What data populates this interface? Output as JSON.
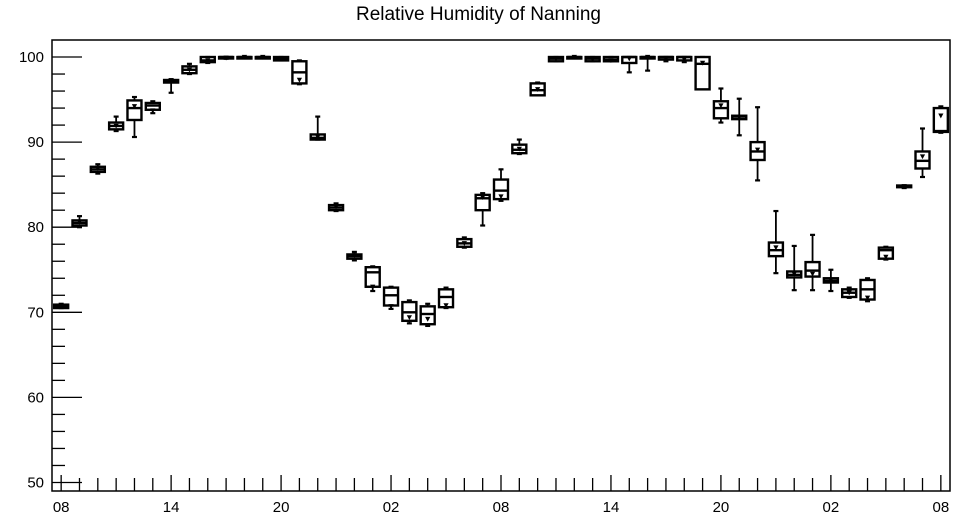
{
  "chart_data": {
    "type": "box",
    "title": "Relative Humidity of Nanning",
    "xlabel": "",
    "ylabel": "",
    "ylim": [
      49,
      102
    ],
    "yticks": [
      50,
      60,
      70,
      80,
      90,
      100
    ],
    "ytick_labels": [
      "50",
      "60",
      "70",
      "80",
      "90",
      "100"
    ],
    "x_range": [
      -0.5,
      48.5
    ],
    "xticks": [
      0,
      6,
      12,
      18,
      24,
      30,
      36,
      42,
      48
    ],
    "xtick_labels": [
      "08",
      "14",
      "20",
      "02",
      "08",
      "14",
      "20",
      "02",
      "08"
    ],
    "grid": false,
    "legend": "none",
    "boxes": [
      {
        "hour": 0,
        "min": 70.5,
        "q1": 70.5,
        "median": 70.7,
        "q3": 70.9,
        "max": 71.0,
        "mean": 70.7
      },
      {
        "hour": 1,
        "min": 80.0,
        "q1": 80.2,
        "median": 80.5,
        "q3": 80.8,
        "max": 81.3,
        "mean": 80.6
      },
      {
        "hour": 2,
        "min": 86.3,
        "q1": 86.5,
        "median": 86.8,
        "q3": 87.1,
        "max": 87.4,
        "mean": 86.9
      },
      {
        "hour": 3,
        "min": 91.3,
        "q1": 91.5,
        "median": 91.9,
        "q3": 92.3,
        "max": 93.0,
        "mean": 91.9
      },
      {
        "hour": 4,
        "min": 90.6,
        "q1": 92.6,
        "median": 94.0,
        "q3": 94.9,
        "max": 95.3,
        "mean": 94.2
      },
      {
        "hour": 5,
        "min": 93.4,
        "q1": 93.8,
        "median": 94.3,
        "q3": 94.6,
        "max": 94.8,
        "mean": 93.7
      },
      {
        "hour": 6,
        "min": 95.8,
        "q1": 97.0,
        "median": 97.2,
        "q3": 97.3,
        "max": 97.4,
        "mean": 97.2
      },
      {
        "hour": 7,
        "min": 98.0,
        "q1": 98.1,
        "median": 98.5,
        "q3": 98.9,
        "max": 99.2,
        "mean": 98.5
      },
      {
        "hour": 8,
        "min": 99.3,
        "q1": 99.4,
        "median": 99.6,
        "q3": 100.0,
        "max": 100.0,
        "mean": 99.6
      },
      {
        "hour": 9,
        "min": 99.8,
        "q1": 100.0,
        "median": 100.0,
        "q3": 100.0,
        "max": 100.0,
        "mean": 99.9
      },
      {
        "hour": 10,
        "min": 100.0,
        "q1": 100.0,
        "median": 100.0,
        "q3": 100.0,
        "max": 100.0,
        "mean": 100.0
      },
      {
        "hour": 11,
        "min": 100.0,
        "q1": 100.0,
        "median": 100.0,
        "q3": 100.0,
        "max": 100.0,
        "mean": 100.0
      },
      {
        "hour": 12,
        "min": 99.6,
        "q1": 99.6,
        "median": 99.8,
        "q3": 100.0,
        "max": 100.0,
        "mean": 99.8
      },
      {
        "hour": 13,
        "min": 96.8,
        "q1": 96.9,
        "median": 98.2,
        "q3": 99.5,
        "max": 99.6,
        "mean": 97.3
      },
      {
        "hour": 14,
        "min": 90.3,
        "q1": 90.3,
        "median": 90.5,
        "q3": 90.9,
        "max": 93.0,
        "mean": 90.6
      },
      {
        "hour": 15,
        "min": 81.9,
        "q1": 82.0,
        "median": 82.3,
        "q3": 82.6,
        "max": 82.8,
        "mean": 82.4
      },
      {
        "hour": 16,
        "min": 76.1,
        "q1": 76.3,
        "median": 76.6,
        "q3": 76.8,
        "max": 77.1,
        "mean": 76.7
      },
      {
        "hour": 17,
        "min": 72.5,
        "q1": 73.0,
        "median": 74.7,
        "q3": 75.3,
        "max": 75.4,
        "mean": 73.0
      },
      {
        "hour": 18,
        "min": 70.4,
        "q1": 70.8,
        "median": 72.0,
        "q3": 72.9,
        "max": 73.0,
        "mean": 70.7
      },
      {
        "hour": 19,
        "min": 68.7,
        "q1": 69.0,
        "median": 70.0,
        "q3": 71.2,
        "max": 71.4,
        "mean": 69.4
      },
      {
        "hour": 20,
        "min": 68.4,
        "q1": 68.6,
        "median": 69.8,
        "q3": 70.7,
        "max": 71.0,
        "mean": 69.2
      },
      {
        "hour": 21,
        "min": 70.5,
        "q1": 70.6,
        "median": 71.8,
        "q3": 72.7,
        "max": 72.9,
        "mean": 70.8
      },
      {
        "hour": 22,
        "min": 77.6,
        "q1": 77.7,
        "median": 78.1,
        "q3": 78.6,
        "max": 78.8,
        "mean": 78.1
      },
      {
        "hour": 23,
        "min": 80.2,
        "q1": 82.0,
        "median": 83.4,
        "q3": 83.8,
        "max": 84.0,
        "mean": 83.5
      },
      {
        "hour": 24,
        "min": 83.1,
        "q1": 83.3,
        "median": 84.3,
        "q3": 85.6,
        "max": 86.8,
        "mean": 83.6
      },
      {
        "hour": 25,
        "min": 88.6,
        "q1": 88.7,
        "median": 89.1,
        "q3": 89.7,
        "max": 90.3,
        "mean": 89.2
      },
      {
        "hour": 26,
        "min": 95.5,
        "q1": 95.5,
        "median": 96.1,
        "q3": 96.9,
        "max": 97.0,
        "mean": 96.2
      },
      {
        "hour": 27,
        "min": 99.5,
        "q1": 99.5,
        "median": 99.8,
        "q3": 100.0,
        "max": 100.0,
        "mean": 99.8
      },
      {
        "hour": 28,
        "min": 100.0,
        "q1": 100.0,
        "median": 100.0,
        "q3": 100.0,
        "max": 100.0,
        "mean": 100.0
      },
      {
        "hour": 29,
        "min": 99.5,
        "q1": 99.5,
        "median": 99.8,
        "q3": 100.0,
        "max": 100.0,
        "mean": 99.7
      },
      {
        "hour": 30,
        "min": 99.5,
        "q1": 99.5,
        "median": 99.7,
        "q3": 100.0,
        "max": 100.0,
        "mean": 99.6
      },
      {
        "hour": 31,
        "min": 98.2,
        "q1": 99.3,
        "median": 100.0,
        "q3": 100.0,
        "max": 100.0,
        "mean": 99.8
      },
      {
        "hour": 32,
        "min": 98.4,
        "q1": 100.0,
        "median": 100.0,
        "q3": 100.0,
        "max": 100.0,
        "mean": 100.0
      },
      {
        "hour": 33,
        "min": 99.5,
        "q1": 99.7,
        "median": 100.0,
        "q3": 100.0,
        "max": 100.0,
        "mean": 99.8
      },
      {
        "hour": 34,
        "min": 99.4,
        "q1": 99.6,
        "median": 100.0,
        "q3": 100.0,
        "max": 100.0,
        "mean": 99.7
      },
      {
        "hour": 35,
        "min": 96.2,
        "q1": 96.2,
        "median": 99.2,
        "q3": 100.0,
        "max": 100.0,
        "mean": 99.3
      },
      {
        "hour": 36,
        "min": 92.3,
        "q1": 92.8,
        "median": 94.0,
        "q3": 94.8,
        "max": 96.3,
        "mean": 94.3
      },
      {
        "hour": 37,
        "min": 90.8,
        "q1": 92.7,
        "median": 93.0,
        "q3": 93.1,
        "max": 95.1,
        "mean": 92.9
      },
      {
        "hour": 38,
        "min": 85.5,
        "q1": 87.9,
        "median": 88.9,
        "q3": 90.0,
        "max": 94.1,
        "mean": 89.1
      },
      {
        "hour": 39,
        "min": 74.6,
        "q1": 76.6,
        "median": 77.3,
        "q3": 78.2,
        "max": 81.9,
        "mean": 77.6
      },
      {
        "hour": 40,
        "min": 72.6,
        "q1": 74.1,
        "median": 74.4,
        "q3": 74.8,
        "max": 77.8,
        "mean": 74.5
      },
      {
        "hour": 41,
        "min": 72.6,
        "q1": 74.2,
        "median": 74.9,
        "q3": 75.9,
        "max": 79.1,
        "mean": 74.5
      },
      {
        "hour": 42,
        "min": 72.5,
        "q1": 73.5,
        "median": 73.7,
        "q3": 74.0,
        "max": 75.0,
        "mean": 73.8
      },
      {
        "hour": 43,
        "min": 71.7,
        "q1": 71.8,
        "median": 72.3,
        "q3": 72.7,
        "max": 72.9,
        "mean": 72.3
      },
      {
        "hour": 44,
        "min": 71.3,
        "q1": 71.5,
        "median": 72.7,
        "q3": 73.8,
        "max": 74.0,
        "mean": 71.7
      },
      {
        "hour": 45,
        "min": 76.2,
        "q1": 76.3,
        "median": 77.3,
        "q3": 77.6,
        "max": 77.7,
        "mean": 76.5
      },
      {
        "hour": 46,
        "min": 84.6,
        "q1": 84.7,
        "median": 84.8,
        "q3": 84.9,
        "max": 84.9,
        "mean": 84.8
      },
      {
        "hour": 47,
        "min": 85.9,
        "q1": 86.9,
        "median": 87.8,
        "q3": 88.9,
        "max": 91.6,
        "mean": 88.3
      },
      {
        "hour": 48,
        "min": 91.1,
        "q1": 91.2,
        "median": 91.3,
        "q3": 94.0,
        "max": 94.2,
        "mean": 93.1
      }
    ]
  }
}
